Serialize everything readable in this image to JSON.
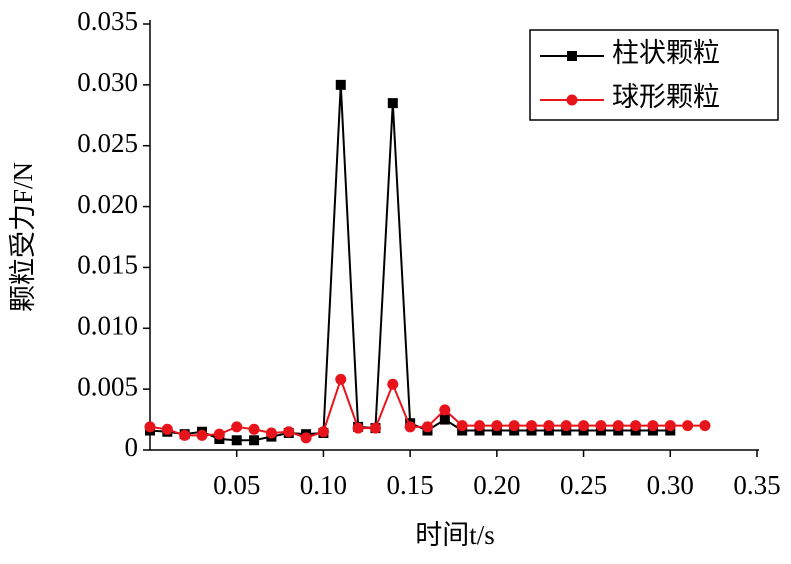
{
  "chart_data": {
    "type": "line",
    "xlabel": "时间t/s",
    "ylabel": "颗粒受力F/N",
    "xlim": [
      0,
      0.35
    ],
    "xticks": [
      0.05,
      {
        "value": 0.1,
        "label": "0.10"
      },
      0.15,
      {
        "value": 0.2,
        "label": "0.20"
      },
      0.25,
      {
        "value": 0.3,
        "label": "0.30"
      },
      0.35
    ],
    "ylim": [
      0,
      0.035
    ],
    "yticks": [
      {
        "value": 0,
        "label": "0"
      },
      0.005,
      {
        "value": 0.01,
        "label": "0.010"
      },
      0.015,
      {
        "value": 0.02,
        "label": "0.020"
      },
      0.025,
      {
        "value": 0.03,
        "label": "0.030"
      },
      0.035
    ],
    "legend": "upper right",
    "series": [
      {
        "name": "柱状颗粒",
        "color": "#000000",
        "marker": "square",
        "x": [
          0,
          0.01,
          0.02,
          0.03,
          0.04,
          0.05,
          0.06,
          0.07,
          0.08,
          0.09,
          0.1,
          0.11,
          0.12,
          0.13,
          0.14,
          0.15,
          0.16,
          0.17,
          0.18,
          0.19,
          0.2,
          0.21,
          0.22,
          0.23,
          0.24,
          0.25,
          0.26,
          0.27,
          0.28,
          0.29,
          0.3
        ],
        "values": [
          0.0016,
          0.0015,
          0.0013,
          0.0015,
          0.0009,
          0.0008,
          0.0008,
          0.0011,
          0.0014,
          0.0013,
          0.0014,
          0.03,
          0.0019,
          0.0018,
          0.0285,
          0.0022,
          0.0016,
          0.0025,
          0.0016,
          0.0016,
          0.0016,
          0.0016,
          0.0016,
          0.0016,
          0.0016,
          0.0016,
          0.0016,
          0.0016,
          0.0016,
          0.0016,
          0.0016
        ]
      },
      {
        "name": "球形颗粒",
        "color": "#e8141b",
        "marker": "circle",
        "x": [
          0,
          0.01,
          0.02,
          0.03,
          0.04,
          0.05,
          0.06,
          0.07,
          0.08,
          0.09,
          0.1,
          0.11,
          0.12,
          0.13,
          0.14,
          0.15,
          0.16,
          0.17,
          0.18,
          0.19,
          0.2,
          0.21,
          0.22,
          0.23,
          0.24,
          0.25,
          0.26,
          0.27,
          0.28,
          0.29,
          0.3,
          0.31,
          0.32
        ],
        "values": [
          0.0019,
          0.0017,
          0.0012,
          0.0012,
          0.0013,
          0.0019,
          0.0017,
          0.0014,
          0.0015,
          0.001,
          0.0015,
          0.0058,
          0.0018,
          0.0018,
          0.0054,
          0.0019,
          0.0019,
          0.0033,
          0.002,
          0.002,
          0.002,
          0.002,
          0.002,
          0.002,
          0.002,
          0.002,
          0.002,
          0.002,
          0.002,
          0.002,
          0.002,
          0.002,
          0.002
        ]
      }
    ]
  }
}
